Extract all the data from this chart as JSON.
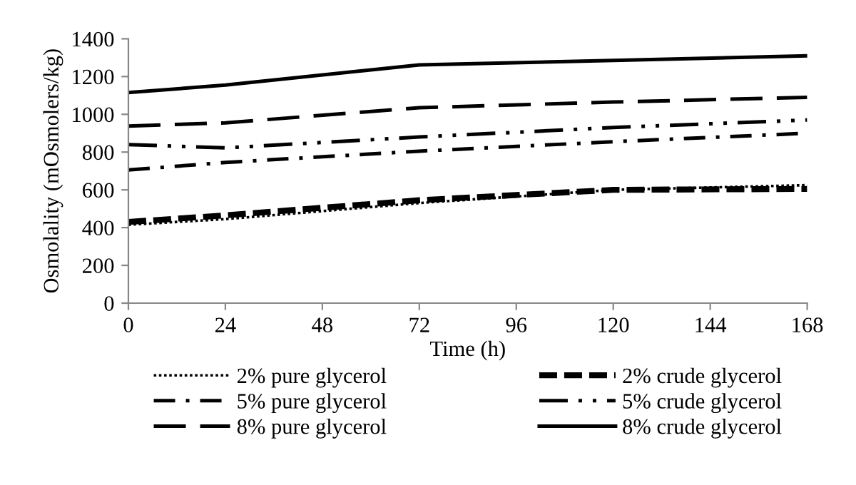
{
  "chart_data": {
    "type": "line",
    "xlabel": "Time (h)",
    "ylabel": "Osmolality (mOsmolers/kg)",
    "x": [
      0,
      24,
      72,
      120,
      168
    ],
    "xlim": [
      0,
      168
    ],
    "xticks": [
      0,
      24,
      48,
      72,
      96,
      120,
      144,
      168
    ],
    "ylim": [
      0,
      1400
    ],
    "yticks": [
      0,
      200,
      400,
      600,
      800,
      1000,
      1200,
      1400
    ],
    "grid": false,
    "legend": "bottom",
    "marker": "none",
    "series": [
      {
        "name": "2% pure glycerol",
        "color": "#000000",
        "line_style": "dotted",
        "values": [
          415,
          445,
          530,
          600,
          625
        ]
      },
      {
        "name": "2% crude glycerol",
        "color": "#000000",
        "line_style": "dashed",
        "values": [
          430,
          465,
          545,
          600,
          605
        ]
      },
      {
        "name": "5% pure glycerol",
        "color": "#000000",
        "line_style": "dashdot",
        "values": [
          705,
          745,
          805,
          855,
          900
        ]
      },
      {
        "name": "5% crude glycerol",
        "color": "#000000",
        "line_style": "dashdotdot",
        "values": [
          840,
          822,
          880,
          930,
          970
        ]
      },
      {
        "name": "8% pure glycerol",
        "color": "#000000",
        "line_style": "longdash",
        "values": [
          938,
          955,
          1035,
          1065,
          1090
        ]
      },
      {
        "name": "8% crude glycerol",
        "color": "#000000",
        "line_style": "solid",
        "values": [
          1115,
          1155,
          1262,
          1285,
          1310
        ]
      }
    ]
  }
}
